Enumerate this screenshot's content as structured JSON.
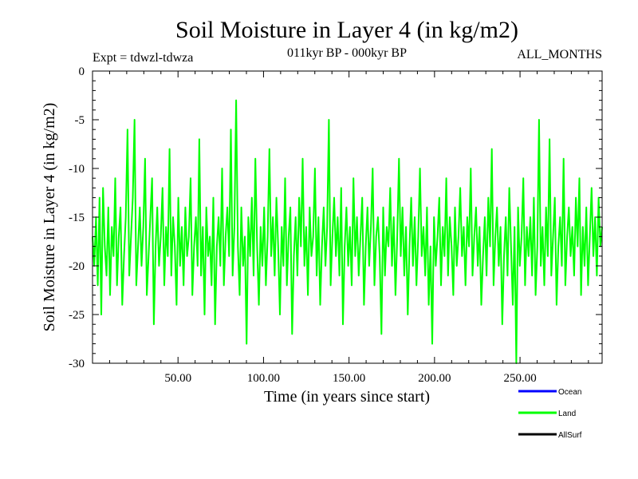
{
  "chart_data": {
    "type": "line",
    "title": "Soil Moisture in Layer 4 (in kg/m2)",
    "subtitle": "011kyr BP - 000kyr BP",
    "experiment": "Expt = tdwzl-tdwza",
    "period": "ALL_MONTHS",
    "xlabel": "Time (in years since start)",
    "ylabel": "Soil Moisture in Layer 4 (in kg/m2)",
    "xlim": [
      0,
      298
    ],
    "ylim": [
      -30,
      0
    ],
    "x_ticks": [
      50,
      100,
      150,
      200,
      250
    ],
    "x_tick_labels": [
      "50.00",
      "100.00",
      "150.00",
      "200.00",
      "250.00"
    ],
    "y_ticks": [
      0,
      -5,
      -10,
      -15,
      -20,
      -25,
      -30
    ],
    "y_tick_labels": [
      "0",
      "-5",
      "-10",
      "-15",
      "-20",
      "-25",
      "-30"
    ],
    "grid": false,
    "legend_position": "bottom-right",
    "series": [
      {
        "name": "Ocean",
        "color": "#0000ff",
        "x_range": [
          0,
          298
        ],
        "values": []
      },
      {
        "name": "Land",
        "color": "#00ff00",
        "x_range": [
          0,
          298
        ],
        "values": [
          -17,
          -20,
          -15,
          -22,
          -13,
          -25,
          -12,
          -18,
          -21,
          -14,
          -23,
          -16,
          -19,
          -11,
          -22,
          -17,
          -14,
          -24,
          -19,
          -15,
          -6,
          -21,
          -17,
          -13,
          -5,
          -22,
          -18,
          -14,
          -20,
          -16,
          -9,
          -23,
          -19,
          -15,
          -11,
          -26,
          -18,
          -14,
          -20,
          -17,
          -12,
          -22,
          -16,
          -19,
          -8,
          -21,
          -15,
          -18,
          -24,
          -13,
          -20,
          -16,
          -22,
          -14,
          -19,
          -17,
          -11,
          -23,
          -18,
          -15,
          -20,
          -7,
          -21,
          -16,
          -25,
          -14,
          -19,
          -17,
          -22,
          -13,
          -26,
          -18,
          -15,
          -20,
          -10,
          -22,
          -17,
          -14,
          -19,
          -6,
          -21,
          -16,
          -3,
          -18,
          -23,
          -14,
          -20,
          -17,
          -28,
          -15,
          -19,
          -13,
          -21,
          -9,
          -18,
          -24,
          -16,
          -20,
          -14,
          -22,
          -17,
          -8,
          -19,
          -15,
          -21,
          -13,
          -18,
          -25,
          -16,
          -20,
          -11,
          -22,
          -17,
          -14,
          -27,
          -19,
          -15,
          -21,
          -13,
          -18,
          -9,
          -20,
          -16,
          -23,
          -14,
          -19,
          -17,
          -10,
          -21,
          -15,
          -24,
          -18,
          -14,
          -20,
          -16,
          -5,
          -22,
          -17,
          -13,
          -19,
          -15,
          -21,
          -12,
          -26,
          -18,
          -14,
          -20,
          -16,
          -22,
          -11,
          -19,
          -15,
          -21,
          -17,
          -13,
          -24,
          -18,
          -14,
          -20,
          -16,
          -10,
          -22,
          -17,
          -15,
          -19,
          -27,
          -14,
          -21,
          -16,
          -18,
          -12,
          -20,
          -15,
          -23,
          -17,
          -9,
          -19,
          -14,
          -21,
          -16,
          -25,
          -18,
          -13,
          -20,
          -15,
          -22,
          -17,
          -10,
          -19,
          -16,
          -21,
          -14,
          -24,
          -18,
          -28,
          -15,
          -20,
          -17,
          -13,
          -22,
          -16,
          -19,
          -11,
          -21,
          -15,
          -18,
          -23,
          -14,
          -20,
          -17,
          -12,
          -19,
          -16,
          -22,
          -15,
          -18,
          -10,
          -21,
          -17,
          -14,
          -20,
          -16,
          -24,
          -19,
          -15,
          -21,
          -13,
          -18,
          -8,
          -22,
          -17,
          -14,
          -20,
          -16,
          -26,
          -19,
          -15,
          -21,
          -12,
          -18,
          -24,
          -16,
          -30,
          -14,
          -20,
          -17,
          -11,
          -22,
          -16,
          -19,
          -15,
          -21,
          -13,
          -23,
          -18,
          -5,
          -20,
          -16,
          -22,
          -14,
          -19,
          -7,
          -21,
          -17,
          -13,
          -24,
          -18,
          -15,
          -20,
          -9,
          -22,
          -17,
          -14,
          -19,
          -16,
          -21,
          -13,
          -18,
          -11,
          -23,
          -16,
          -20,
          -14,
          -22,
          -17,
          -12,
          -19,
          -15,
          -21,
          -13,
          -18,
          -16
        ]
      },
      {
        "name": "AllSurf",
        "color": "#000000",
        "x_range": [
          0,
          298
        ],
        "values": []
      }
    ]
  }
}
